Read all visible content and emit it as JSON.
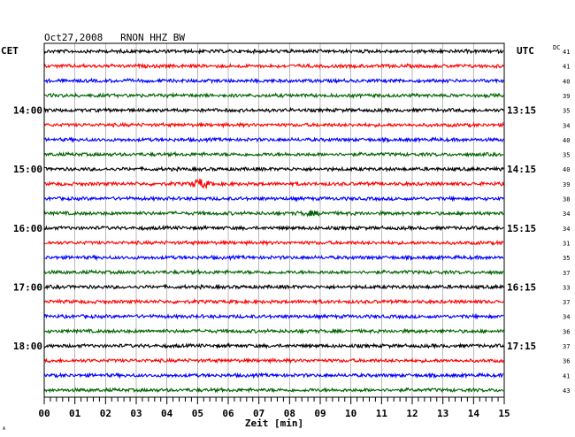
{
  "chart_data": {
    "type": "line",
    "title": "Oct27,2008   RNON HHZ BW",
    "xlabel": "Zeit [min]",
    "left_axis_label": "CET",
    "right_axis_label": "UTC",
    "dc_label": "DC",
    "xlim": [
      0,
      15
    ],
    "x_ticks": [
      "00",
      "01",
      "02",
      "03",
      "04",
      "05",
      "06",
      "07",
      "08",
      "09",
      "10",
      "11",
      "12",
      "13",
      "14",
      "15"
    ],
    "trace_colors": [
      "#000000",
      "#ff0000",
      "#0000ff",
      "#006400"
    ],
    "left_hour_labels": [
      {
        "trace": 4,
        "label": "14:00"
      },
      {
        "trace": 8,
        "label": "15:00"
      },
      {
        "trace": 12,
        "label": "16:00"
      },
      {
        "trace": 16,
        "label": "17:00"
      },
      {
        "trace": 20,
        "label": "18:00"
      }
    ],
    "right_hour_labels": [
      {
        "trace": 4,
        "label": "13:15"
      },
      {
        "trace": 8,
        "label": "14:15"
      },
      {
        "trace": 12,
        "label": "15:15"
      },
      {
        "trace": 16,
        "label": "16:15"
      },
      {
        "trace": 20,
        "label": "17:15"
      }
    ],
    "dc_values": [
      "41",
      "41",
      "40",
      "39",
      "35",
      "34",
      "40",
      "35",
      "40",
      "39",
      "38",
      "34",
      "34",
      "31",
      "35",
      "37",
      "33",
      "37",
      "34",
      "36",
      "37",
      "36",
      "41",
      "43"
    ],
    "events": [
      {
        "trace": 9,
        "minute": 5.1,
        "amplitude": "large"
      },
      {
        "trace": 11,
        "minute": 8.7,
        "amplitude": "small"
      }
    ],
    "corner_mark": "A"
  }
}
